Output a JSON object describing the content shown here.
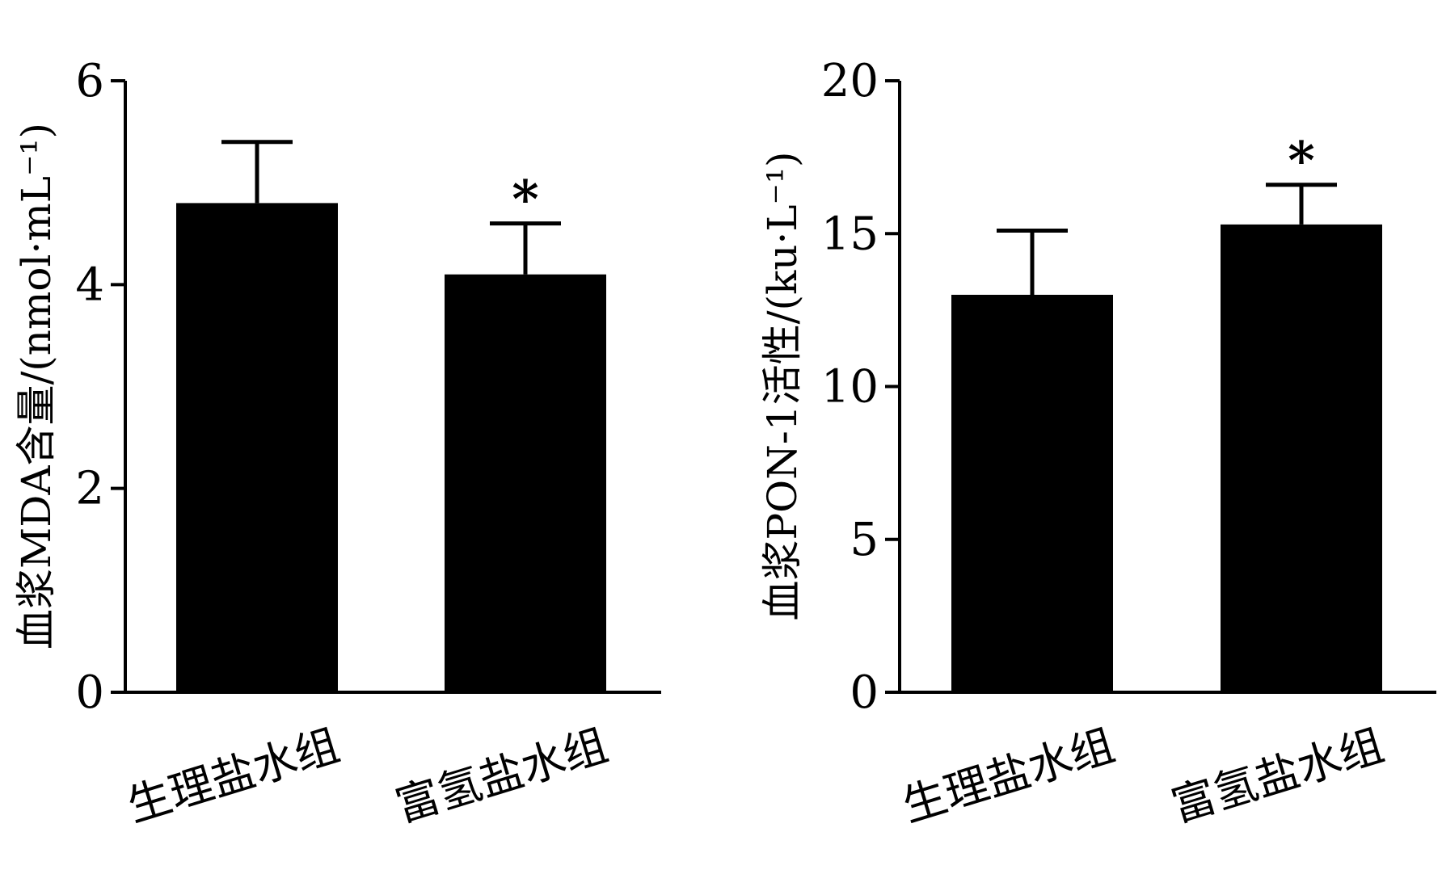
{
  "chart_data": [
    {
      "type": "bar",
      "categories": [
        "生理盐水组",
        "富氢盐水组"
      ],
      "values": [
        4.8,
        4.1
      ],
      "errors": [
        0.6,
        0.5
      ],
      "annotations": [
        "",
        "*"
      ],
      "ylabel": "血浆MDA含量/(nmol·mL⁻¹)",
      "xlabel": "",
      "ylim": [
        0,
        6
      ],
      "yticks": [
        "0",
        "2",
        "4",
        "6"
      ],
      "bar_color": "#000000"
    },
    {
      "type": "bar",
      "categories": [
        "生理盐水组",
        "富氢盐水组"
      ],
      "values": [
        13.0,
        15.3
      ],
      "errors": [
        2.1,
        1.3
      ],
      "annotations": [
        "",
        "*"
      ],
      "ylabel": "血浆PON-1活性/(ku·L⁻¹)",
      "xlabel": "",
      "ylim": [
        0,
        20
      ],
      "yticks": [
        "0",
        "5",
        "10",
        "15",
        "20"
      ],
      "bar_color": "#000000"
    }
  ]
}
